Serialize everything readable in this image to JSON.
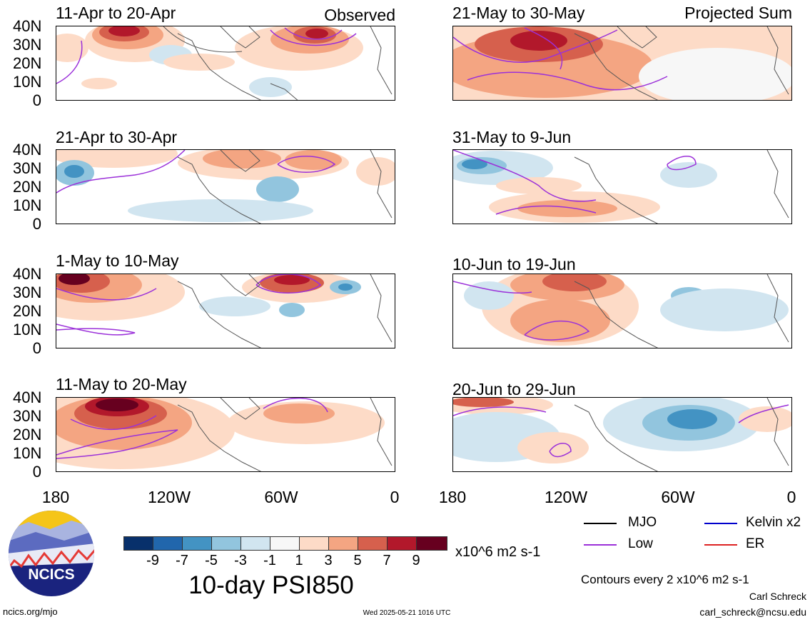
{
  "panels": [
    {
      "title": "11-Apr to 20-Apr",
      "label": "Observed"
    },
    {
      "title": "21-May to 30-May",
      "label": "Projected Sum"
    },
    {
      "title": "21-Apr to 30-Apr",
      "label": ""
    },
    {
      "title": "31-May to 9-Jun",
      "label": ""
    },
    {
      "title": "1-May to 10-May",
      "label": ""
    },
    {
      "title": "10-Jun to 19-Jun",
      "label": ""
    },
    {
      "title": "11-May to 20-May",
      "label": ""
    },
    {
      "title": "20-Jun to 29-Jun",
      "label": ""
    }
  ],
  "y_ticks": [
    "40N",
    "30N",
    "20N",
    "10N",
    "0"
  ],
  "x_ticks": [
    "180",
    "120W",
    "60W",
    "0"
  ],
  "colorbar": {
    "colors": [
      "#08306b",
      "#2166ac",
      "#4393c3",
      "#92c5de",
      "#d1e5f0",
      "#f7f7f7",
      "#fddbc7",
      "#f4a582",
      "#d6604d",
      "#b2182b",
      "#67001f"
    ],
    "labels": [
      "-9",
      "-7",
      "-5",
      "-3",
      "-1",
      "1",
      "3",
      "5",
      "7",
      "9"
    ],
    "units": "x10^6 m2 s-1"
  },
  "product_title": "10-day PSI850",
  "legend": {
    "items": [
      {
        "label": "MJO",
        "color": "#000000"
      },
      {
        "label": "Kelvin x2",
        "color": "#0000cc"
      },
      {
        "label": "Low",
        "color": "#9b30d9"
      },
      {
        "label": "ER",
        "color": "#dd2222"
      }
    ],
    "contours_note": "Contours every 2 x10^6 m2 s-1"
  },
  "logo": {
    "text": "NCICS"
  },
  "footer": {
    "url": "ncics.org/mjo",
    "timestamp": "Wed 2025-05-21 1016 UTC",
    "author": "Carl Schreck",
    "email": "carl_schreck@ncsu.edu"
  }
}
